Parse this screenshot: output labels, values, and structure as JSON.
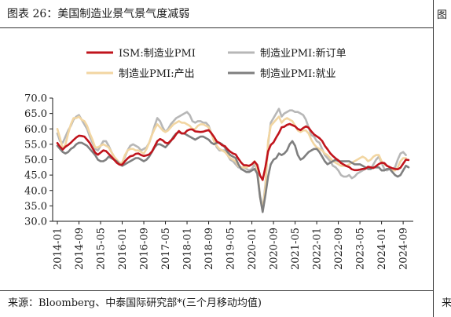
{
  "header": {
    "title": "图表 26：美国制造业景气景气度减弱",
    "right_mark": "图"
  },
  "footer": {
    "source": "来源：Bloomberg、中泰国际研究部*(三个月移动均值)",
    "right_mark": "来"
  },
  "colors": {
    "ism": "#c0141c",
    "new_orders": "#b7b7b7",
    "production": "#f2d6a2",
    "employment": "#7f7f7f"
  },
  "chart_data": {
    "type": "line",
    "title": "",
    "xlabel": "",
    "ylabel": "",
    "ylim": [
      30,
      70
    ],
    "yticks": [
      "70.0",
      "65.0",
      "60.0",
      "55.0",
      "50.0",
      "45.0",
      "40.0",
      "35.0",
      "30.0"
    ],
    "xticks": [
      "2014-01",
      "2014-09",
      "2015-05",
      "2016-01",
      "2016-09",
      "2017-05",
      "2018-01",
      "2018-09",
      "2019-05",
      "2020-01",
      "2020-09",
      "2021-05",
      "2022-01",
      "2022-09",
      "2023-05",
      "2024-01",
      "2024-09"
    ],
    "grid": false,
    "legend_placement": "top",
    "x_start": "2014-01",
    "series": [
      {
        "name": "ISM:制造业PMI",
        "values": [
          55.4,
          54.2,
          53.3,
          54.2,
          54.8,
          55.5,
          56.4,
          57.2,
          57.8,
          57.7,
          57.5,
          56.5,
          55.4,
          53.8,
          52.3,
          51.6,
          52.3,
          53.0,
          52.8,
          51.9,
          51.0,
          50.0,
          49.0,
          48.4,
          48.4,
          49.5,
          50.4,
          51.1,
          51.3,
          51.9,
          52.0,
          51.5,
          51.2,
          51.4,
          51.7,
          52.6,
          54.3,
          56.0,
          56.7,
          56.3,
          55.5,
          55.3,
          56.2,
          57.0,
          58.3,
          59.3,
          58.5,
          58.5,
          59.4,
          59.8,
          59.8,
          59.2,
          59.1,
          59.0,
          59.1,
          59.4,
          59.6,
          58.6,
          57.4,
          55.9,
          55.4,
          54.7,
          54.4,
          53.4,
          52.6,
          52.0,
          51.7,
          50.3,
          49.1,
          48.2,
          48.2,
          48.0,
          48.5,
          49.4,
          48.3,
          44.9,
          43.4,
          47.6,
          52.7,
          54.8,
          55.6,
          57.2,
          58.7,
          60.5,
          60.7,
          61.3,
          61.6,
          61.2,
          60.8,
          60.0,
          59.6,
          60.3,
          60.8,
          60.4,
          59.2,
          58.2,
          57.6,
          57.0,
          56.1,
          54.5,
          53.4,
          52.1,
          51.2,
          50.4,
          49.8,
          48.9,
          48.4,
          47.9,
          47.6,
          46.9,
          46.6,
          46.6,
          46.8,
          47.0,
          47.1,
          47.7,
          47.5,
          47.3,
          47.9,
          48.6,
          49.0,
          48.9,
          48.0,
          47.6,
          47.2,
          47.0,
          46.9,
          47.4,
          48.7,
          50.0,
          49.9
        ]
      },
      {
        "name": "制造业PMI:新订单",
        "values": [
          58.5,
          56.0,
          55.5,
          57.5,
          59.5,
          61.0,
          63.0,
          64.0,
          64.5,
          63.0,
          61.5,
          60.0,
          57.5,
          55.5,
          53.5,
          53.0,
          54.5,
          56.0,
          56.0,
          54.5,
          52.5,
          51.0,
          49.5,
          48.5,
          49.0,
          51.0,
          53.0,
          54.5,
          55.0,
          54.5,
          54.0,
          53.0,
          53.5,
          54.0,
          55.5,
          58.0,
          61.0,
          63.5,
          62.5,
          60.5,
          59.0,
          60.0,
          61.5,
          62.5,
          63.5,
          64.0,
          64.5,
          65.0,
          65.5,
          64.5,
          62.5,
          62.0,
          62.5,
          62.5,
          62.0,
          62.0,
          61.0,
          58.5,
          56.5,
          54.0,
          53.0,
          53.0,
          53.0,
          51.5,
          50.0,
          49.5,
          48.5,
          47.5,
          47.5,
          47.5,
          47.0,
          46.5,
          47.0,
          48.5,
          46.5,
          38.5,
          34.0,
          42.0,
          55.0,
          62.0,
          63.5,
          65.0,
          66.5,
          64.0,
          65.0,
          65.5,
          66.0,
          66.0,
          65.5,
          65.5,
          65.0,
          64.5,
          63.0,
          60.5,
          58.0,
          57.5,
          56.0,
          55.5,
          53.5,
          51.5,
          50.5,
          49.5,
          48.0,
          47.5,
          46.5,
          45.0,
          44.5,
          44.5,
          45.0,
          44.0,
          44.5,
          45.5,
          46.0,
          46.5,
          47.0,
          47.5,
          47.0,
          48.5,
          50.0,
          51.0,
          49.0,
          47.0,
          46.5,
          47.0,
          47.0,
          47.5,
          50.0,
          52.0,
          52.5,
          51.5
        ]
      },
      {
        "name": "制造业PMI:产出",
        "values": [
          60.0,
          57.0,
          53.5,
          55.0,
          58.5,
          61.5,
          63.5,
          63.5,
          64.0,
          63.0,
          62.5,
          61.0,
          58.5,
          56.5,
          54.0,
          54.0,
          54.5,
          55.0,
          54.5,
          54.0,
          52.5,
          51.0,
          50.0,
          49.0,
          49.0,
          51.5,
          53.0,
          53.5,
          53.5,
          53.0,
          53.0,
          52.5,
          52.0,
          53.5,
          55.5,
          58.0,
          60.0,
          61.5,
          60.5,
          59.5,
          59.0,
          59.5,
          60.5,
          61.5,
          62.0,
          62.5,
          62.0,
          62.0,
          61.5,
          61.0,
          60.0,
          60.0,
          61.0,
          61.5,
          61.5,
          61.0,
          60.5,
          58.5,
          56.0,
          54.5,
          53.5,
          53.0,
          52.5,
          51.5,
          50.5,
          50.0,
          49.5,
          48.0,
          47.5,
          47.5,
          47.5,
          48.0,
          48.5,
          49.5,
          47.0,
          38.0,
          33.5,
          41.0,
          56.0,
          61.0,
          62.0,
          63.0,
          64.0,
          62.0,
          63.0,
          63.5,
          63.0,
          62.5,
          61.0,
          59.5,
          59.0,
          59.5,
          59.5,
          58.5,
          56.5,
          55.0,
          54.0,
          53.5,
          53.0,
          52.0,
          51.5,
          50.5,
          49.5,
          49.0,
          48.5,
          48.0,
          48.0,
          48.0,
          48.5,
          49.0,
          49.5,
          50.0,
          50.5,
          51.0,
          50.5,
          49.5,
          50.0,
          51.0,
          51.5,
          51.5,
          49.5,
          48.5,
          48.0,
          47.5,
          46.5,
          46.5,
          47.5,
          49.5,
          50.5,
          50.5
        ]
      },
      {
        "name": "制造业PMI:就业",
        "values": [
          54.5,
          53.5,
          52.5,
          52.0,
          52.5,
          53.5,
          54.0,
          55.0,
          55.5,
          55.5,
          55.0,
          54.5,
          53.5,
          52.5,
          51.5,
          50.0,
          49.5,
          49.5,
          50.0,
          51.0,
          50.5,
          50.0,
          49.5,
          48.5,
          48.0,
          48.5,
          49.0,
          49.5,
          50.0,
          50.5,
          50.5,
          50.0,
          49.5,
          50.0,
          51.0,
          52.5,
          54.0,
          55.0,
          55.0,
          54.5,
          54.0,
          55.0,
          56.0,
          57.5,
          58.5,
          59.0,
          58.5,
          58.5,
          58.0,
          57.5,
          57.0,
          56.5,
          57.0,
          57.5,
          57.5,
          57.0,
          56.5,
          55.5,
          55.0,
          55.5,
          55.5,
          55.0,
          54.0,
          52.5,
          51.5,
          51.0,
          50.5,
          48.5,
          47.0,
          46.5,
          46.0,
          46.0,
          46.5,
          47.0,
          45.5,
          38.0,
          33.0,
          38.5,
          44.5,
          48.5,
          50.0,
          50.5,
          52.0,
          51.5,
          52.0,
          53.0,
          55.0,
          56.0,
          54.5,
          51.5,
          50.0,
          50.5,
          51.5,
          52.5,
          53.0,
          53.5,
          53.5,
          52.5,
          51.0,
          49.5,
          48.5,
          49.0,
          49.5,
          50.0,
          49.5,
          49.5,
          49.5,
          49.5,
          49.5,
          49.0,
          48.5,
          48.5,
          48.5,
          48.0,
          47.5,
          47.0,
          47.0,
          47.5,
          47.5,
          47.5,
          46.5,
          46.5,
          47.0,
          47.0,
          46.0,
          45.0,
          44.5,
          45.0,
          46.5,
          48.0,
          47.5
        ]
      }
    ]
  }
}
